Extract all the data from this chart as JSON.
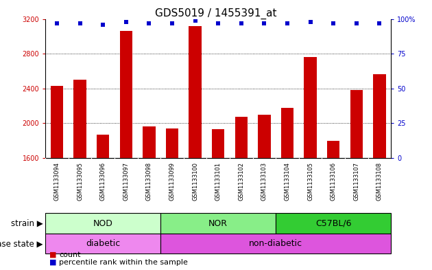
{
  "title": "GDS5019 / 1455391_at",
  "samples": [
    "GSM1133094",
    "GSM1133095",
    "GSM1133096",
    "GSM1133097",
    "GSM1133098",
    "GSM1133099",
    "GSM1133100",
    "GSM1133101",
    "GSM1133102",
    "GSM1133103",
    "GSM1133104",
    "GSM1133105",
    "GSM1133106",
    "GSM1133107",
    "GSM1133108"
  ],
  "counts": [
    2430,
    2500,
    1870,
    3060,
    1960,
    1940,
    3120,
    1930,
    2070,
    2100,
    2180,
    2760,
    1800,
    2380,
    2560
  ],
  "percentiles": [
    97,
    97,
    96,
    98,
    97,
    97,
    99,
    97,
    97,
    97,
    97,
    98,
    97,
    97,
    97
  ],
  "bar_color": "#cc0000",
  "dot_color": "#0000cc",
  "ylim_left": [
    1600,
    3200
  ],
  "ylim_right": [
    0,
    100
  ],
  "yticks_left": [
    1600,
    2000,
    2400,
    2800,
    3200
  ],
  "yticks_right": [
    0,
    25,
    50,
    75,
    100
  ],
  "grid_lines": [
    2000,
    2400,
    2800
  ],
  "strain_groups": [
    {
      "label": "NOD",
      "start": 0,
      "end": 5,
      "color": "#ccffcc"
    },
    {
      "label": "NOR",
      "start": 5,
      "end": 10,
      "color": "#88ee88"
    },
    {
      "label": "C57BL/6",
      "start": 10,
      "end": 15,
      "color": "#33cc33"
    }
  ],
  "disease_groups": [
    {
      "label": "diabetic",
      "start": 0,
      "end": 5,
      "color": "#ee88ee"
    },
    {
      "label": "non-diabetic",
      "start": 5,
      "end": 15,
      "color": "#dd55dd"
    }
  ],
  "strain_label": "strain",
  "disease_label": "disease state",
  "legend_count": "count",
  "legend_percentile": "percentile rank within the sample",
  "xtick_bg": "#cccccc",
  "left_axis_color": "#cc0000",
  "right_axis_color": "#0000cc",
  "tick_fontsize": 7,
  "title_fontsize": 11
}
